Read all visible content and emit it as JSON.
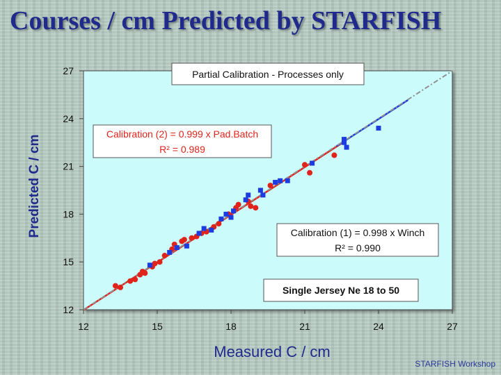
{
  "slide": {
    "title": "Courses / cm Predicted by STARFISH",
    "footer": "STARFISH Workshop"
  },
  "chart_data": {
    "type": "scatter",
    "title": "",
    "xlabel": "Measured C / cm",
    "ylabel": "Predicted C / cm",
    "xlim": [
      12,
      27
    ],
    "ylim": [
      12,
      27
    ],
    "xticks": [
      "12",
      "15",
      "18",
      "21",
      "24",
      "27"
    ],
    "yticks": [
      "12",
      "15",
      "18",
      "21",
      "24",
      "27"
    ],
    "grid": false,
    "colors": {
      "plot_bg": "#ccfbfb",
      "red": "#e0241b",
      "blue": "#1c3be0",
      "dashed_line": "#909090"
    },
    "series": [
      {
        "name": "Winch",
        "marker": "circle",
        "color": "#e0241b",
        "points": [
          [
            13.3,
            13.5
          ],
          [
            13.5,
            13.4
          ],
          [
            13.9,
            13.8
          ],
          [
            14.1,
            13.9
          ],
          [
            14.3,
            14.2
          ],
          [
            14.4,
            14.4
          ],
          [
            14.5,
            14.3
          ],
          [
            14.8,
            14.7
          ],
          [
            14.9,
            14.9
          ],
          [
            15.1,
            15.0
          ],
          [
            15.3,
            15.4
          ],
          [
            15.6,
            15.8
          ],
          [
            15.7,
            16.1
          ],
          [
            16.0,
            16.3
          ],
          [
            16.1,
            16.4
          ],
          [
            16.4,
            16.5
          ],
          [
            16.6,
            16.6
          ],
          [
            16.8,
            16.8
          ],
          [
            17.0,
            16.9
          ],
          [
            17.3,
            17.2
          ],
          [
            17.5,
            17.4
          ],
          [
            17.9,
            18.0
          ],
          [
            18.2,
            18.4
          ],
          [
            18.3,
            18.6
          ],
          [
            18.7,
            18.8
          ],
          [
            18.8,
            18.5
          ],
          [
            19.0,
            18.4
          ],
          [
            19.6,
            19.8
          ],
          [
            21.0,
            21.1
          ],
          [
            21.2,
            20.6
          ],
          [
            22.2,
            21.7
          ]
        ]
      },
      {
        "name": "Pad.Batch",
        "marker": "square",
        "color": "#1c3be0",
        "points": [
          [
            14.7,
            14.8
          ],
          [
            15.5,
            15.6
          ],
          [
            15.8,
            15.9
          ],
          [
            16.2,
            16.0
          ],
          [
            16.7,
            16.8
          ],
          [
            16.9,
            17.1
          ],
          [
            17.2,
            17.0
          ],
          [
            17.6,
            17.7
          ],
          [
            17.8,
            18.0
          ],
          [
            18.0,
            17.8
          ],
          [
            18.1,
            18.2
          ],
          [
            18.6,
            18.9
          ],
          [
            18.7,
            19.2
          ],
          [
            19.2,
            19.5
          ],
          [
            19.3,
            19.2
          ],
          [
            19.8,
            20.0
          ],
          [
            20.0,
            20.1
          ],
          [
            20.3,
            20.1
          ],
          [
            21.3,
            21.2
          ],
          [
            22.6,
            22.5
          ],
          [
            22.7,
            22.2
          ],
          [
            22.6,
            22.7
          ],
          [
            24.0,
            23.4
          ]
        ]
      }
    ],
    "lines": [
      {
        "name": "Calibration (1)",
        "style": "solid",
        "color": "#e0241b",
        "from": [
          12,
          11.98
        ],
        "to": [
          22.5,
          22.45
        ]
      },
      {
        "name": "Calibration (2)",
        "style": "solid",
        "color": "#1c3be0",
        "from": [
          22.3,
          22.28
        ],
        "to": [
          25.2,
          25.17
        ]
      },
      {
        "name": "Full range",
        "style": "dashed",
        "color": "#909090",
        "from": [
          12,
          12
        ],
        "to": [
          27,
          27
        ]
      }
    ],
    "annotations": {
      "partial": "Partial Calibration - Processes only",
      "cal2_line1": "Calibration (2) = 0.999 x Pad.Batch",
      "cal2_line2": "R² = 0.989",
      "cal1_line1": "Calibration (1) = 0.998 x Winch",
      "cal1_line2": "R² = 0.990",
      "single_jersey": "Single Jersey Ne 18 to 50"
    }
  }
}
